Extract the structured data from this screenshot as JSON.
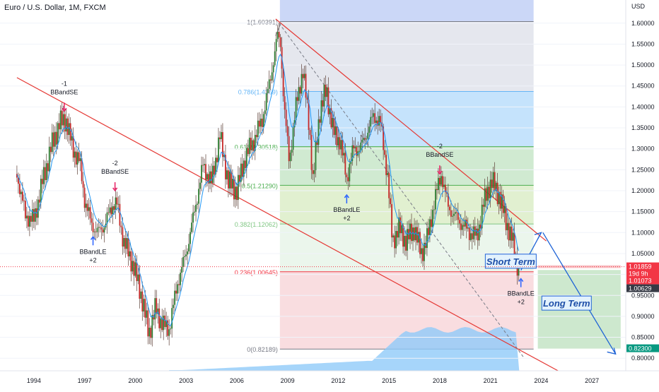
{
  "symbol_title": "Euro / U.S. Dollar, 1M, FXCM",
  "chart_data": {
    "type": "candlestick",
    "title": "Euro / U.S. Dollar, 1M, FXCM",
    "currency_label": "USD",
    "ylim": [
      0.77,
      1.63
    ],
    "y_ticks": [
      "1.60000",
      "1.55000",
      "1.50000",
      "1.45000",
      "1.40000",
      "1.35000",
      "1.30000",
      "1.25000",
      "1.20000",
      "1.15000",
      "1.10000",
      "1.05000",
      "1.00000",
      "0.95000",
      "0.90000",
      "0.85000",
      "0.80000"
    ],
    "x_ticks": [
      "1994",
      "1997",
      "2000",
      "2003",
      "2006",
      "2009",
      "2012",
      "2015",
      "2018",
      "2021",
      "2024",
      "2027"
    ],
    "price_path": [
      [
        1993.0,
        1.24
      ],
      [
        1993.5,
        1.14
      ],
      [
        1994.0,
        1.13
      ],
      [
        1994.5,
        1.22
      ],
      [
        1995.0,
        1.3
      ],
      [
        1995.5,
        1.36
      ],
      [
        1995.9,
        1.37
      ],
      [
        1996.3,
        1.3
      ],
      [
        1996.7,
        1.27
      ],
      [
        1997.0,
        1.18
      ],
      [
        1997.4,
        1.12
      ],
      [
        1997.8,
        1.1
      ],
      [
        1998.2,
        1.12
      ],
      [
        1998.7,
        1.17
      ],
      [
        1998.9,
        1.17
      ],
      [
        1999.3,
        1.08
      ],
      [
        1999.8,
        1.03
      ],
      [
        2000.3,
        0.96
      ],
      [
        2000.8,
        0.86
      ],
      [
        2001.2,
        0.92
      ],
      [
        2001.6,
        0.88
      ],
      [
        2002.0,
        0.87
      ],
      [
        2002.5,
        0.98
      ],
      [
        2003.0,
        1.05
      ],
      [
        2003.5,
        1.15
      ],
      [
        2004.0,
        1.26
      ],
      [
        2004.5,
        1.22
      ],
      [
        2005.0,
        1.33
      ],
      [
        2005.5,
        1.22
      ],
      [
        2006.0,
        1.2
      ],
      [
        2006.5,
        1.28
      ],
      [
        2007.0,
        1.32
      ],
      [
        2007.5,
        1.37
      ],
      [
        2008.0,
        1.47
      ],
      [
        2008.4,
        1.57
      ],
      [
        2008.6,
        1.55
      ],
      [
        2008.8,
        1.4
      ],
      [
        2009.1,
        1.27
      ],
      [
        2009.5,
        1.4
      ],
      [
        2009.9,
        1.49
      ],
      [
        2010.3,
        1.35
      ],
      [
        2010.5,
        1.22
      ],
      [
        2010.9,
        1.39
      ],
      [
        2011.3,
        1.44
      ],
      [
        2011.7,
        1.34
      ],
      [
        2012.1,
        1.32
      ],
      [
        2012.5,
        1.23
      ],
      [
        2012.9,
        1.3
      ],
      [
        2013.3,
        1.3
      ],
      [
        2013.7,
        1.34
      ],
      [
        2014.1,
        1.38
      ],
      [
        2014.5,
        1.36
      ],
      [
        2014.9,
        1.24
      ],
      [
        2015.2,
        1.08
      ],
      [
        2015.6,
        1.11
      ],
      [
        2016.0,
        1.08
      ],
      [
        2016.5,
        1.11
      ],
      [
        2016.9,
        1.05
      ],
      [
        2017.3,
        1.09
      ],
      [
        2017.7,
        1.18
      ],
      [
        2018.1,
        1.24
      ],
      [
        2018.5,
        1.16
      ],
      [
        2018.9,
        1.14
      ],
      [
        2019.3,
        1.12
      ],
      [
        2019.8,
        1.1
      ],
      [
        2020.2,
        1.09
      ],
      [
        2020.6,
        1.17
      ],
      [
        2020.9,
        1.21
      ],
      [
        2021.1,
        1.22
      ],
      [
        2021.5,
        1.19
      ],
      [
        2021.9,
        1.13
      ],
      [
        2022.3,
        1.08
      ],
      [
        2022.7,
        1.0
      ]
    ],
    "fibonacci_levels": [
      {
        "label": "1(1.60391)",
        "value": 1.60391,
        "color": "#787b86"
      },
      {
        "label": "0.786(1.4369)",
        "value": 1.4369,
        "color": "#64b5f6"
      },
      {
        "label": "0.618(1.30518)",
        "value": 1.30518,
        "color": "#4caf50"
      },
      {
        "label": "0.5(1.21290)",
        "value": 1.2129,
        "color": "#4caf50"
      },
      {
        "label": "0.382(1.12062)",
        "value": 1.12062,
        "color": "#81c784"
      },
      {
        "label": "0.236(1.00645)",
        "value": 1.00645,
        "color": "#f23645"
      },
      {
        "label": "0(0.82189)",
        "value": 0.82189,
        "color": "#787b86"
      }
    ],
    "signals": [
      {
        "lines": [
          "-1",
          "BBandSE"
        ],
        "x": 1995.8,
        "y": 1.38,
        "dir": "down"
      },
      {
        "lines": [
          "-2",
          "BBandSE"
        ],
        "x": 1998.8,
        "y": 1.19,
        "dir": "down"
      },
      {
        "lines": [
          "BBandLE",
          "+2"
        ],
        "x": 1997.5,
        "y": 1.1,
        "dir": "up"
      },
      {
        "lines": [
          "BBandLE",
          "+2"
        ],
        "x": 2012.5,
        "y": 1.2,
        "dir": "up"
      },
      {
        "lines": [
          "-2",
          "BBandSE"
        ],
        "x": 2018.0,
        "y": 1.23,
        "dir": "down"
      },
      {
        "lines": [
          "BBandLE",
          "+2"
        ],
        "x": 2022.8,
        "y": 1.0,
        "dir": "up"
      }
    ],
    "annotations": [
      {
        "text": "Short Term",
        "x": 2022.2,
        "y": 1.03
      },
      {
        "text": "Long Term",
        "x": 2025.5,
        "y": 0.93
      }
    ],
    "price_badges": [
      {
        "text": "1.01859",
        "bg": "#f23645",
        "color": "#ffffff",
        "value": 1.01859
      },
      {
        "text": "19d 9h",
        "bg": "#f23645",
        "color": "#ffffff",
        "value": 1.0
      },
      {
        "text": "1.01073",
        "bg": "#f23645",
        "color": "#ffffff",
        "value": 1.01073
      },
      {
        "text": "1.00629",
        "bg": "#363a45",
        "color": "#ffffff",
        "value": 1.00629
      },
      {
        "text": "0.82300",
        "bg": "#089981",
        "color": "#ffffff",
        "value": 0.823
      }
    ]
  }
}
